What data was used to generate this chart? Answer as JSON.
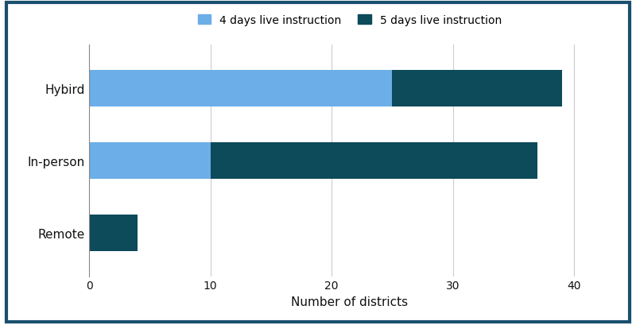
{
  "categories": [
    "Remote",
    "In-person",
    "Hybird"
  ],
  "four_days": [
    0,
    10,
    25
  ],
  "five_days": [
    4,
    27,
    14
  ],
  "color_4days": "#6baee8",
  "color_5days": "#0d4a5a",
  "xlabel": "Number of districts",
  "legend_4days": "4 days live instruction",
  "legend_5days": "5 days live instruction",
  "xlim": [
    0,
    43
  ],
  "xticks": [
    0,
    10,
    20,
    30,
    40
  ],
  "border_color": "#1a4f6e",
  "background_color": "#ffffff",
  "bar_height": 0.5
}
